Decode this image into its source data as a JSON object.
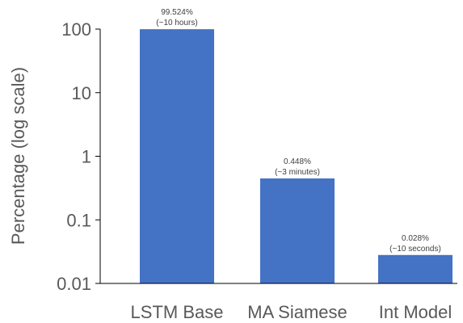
{
  "chart_data": {
    "type": "bar",
    "title": "",
    "xlabel": "",
    "ylabel": "Percentage (log scale)",
    "yscale": "log",
    "ylim": [
      0.01,
      100
    ],
    "yticks": [
      "0.01",
      "0.1",
      "1",
      "10",
      "100"
    ],
    "ytick_values": [
      0.01,
      0.1,
      1,
      10,
      100
    ],
    "categories": [
      "LSTM Base",
      "MA Siamese",
      "Int Model"
    ],
    "values": [
      99.524,
      0.448,
      0.028
    ],
    "data_labels": [
      [
        "99.524%",
        "(~10 hours)"
      ],
      [
        "0.448%",
        "(~3 minutes)"
      ],
      [
        "0.028%",
        "(~10 seconds)"
      ]
    ],
    "bar_color": "#4472C4",
    "axis_color": "#000000",
    "grid": false,
    "legend": "none"
  }
}
